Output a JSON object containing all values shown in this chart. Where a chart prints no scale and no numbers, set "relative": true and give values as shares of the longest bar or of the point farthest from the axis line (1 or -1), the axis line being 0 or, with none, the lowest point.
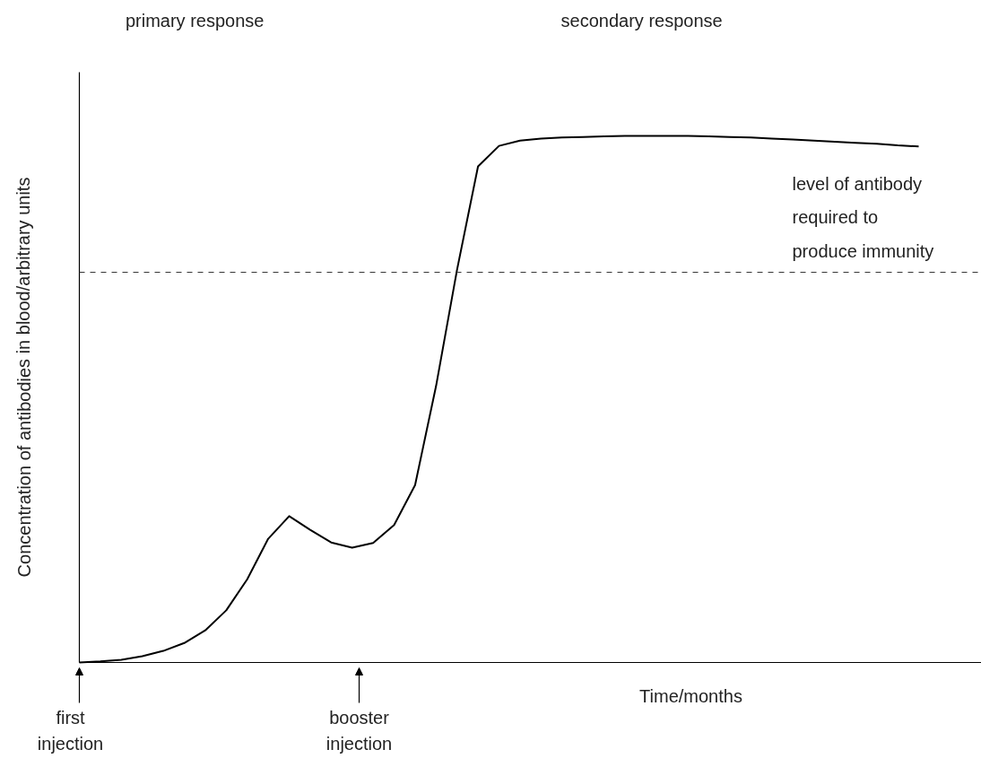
{
  "chart_data": {
    "type": "line",
    "relative": true,
    "categories": [
      null,
      null,
      null,
      null,
      null,
      null,
      null,
      null,
      null,
      null,
      null,
      null,
      null,
      null,
      null,
      null,
      null,
      null,
      null,
      null,
      null,
      null,
      null,
      null,
      null,
      null,
      null,
      null,
      null,
      null,
      null,
      null,
      null,
      null,
      null,
      null,
      null,
      null,
      null,
      null,
      null
    ],
    "values": [
      0,
      0.002,
      0.005,
      0.012,
      0.022,
      0.037,
      0.061,
      0.099,
      0.158,
      0.235,
      0.278,
      0.252,
      0.228,
      0.218,
      0.227,
      0.261,
      0.337,
      0.525,
      0.746,
      0.942,
      0.981,
      0.991,
      0.995,
      0.997,
      0.998,
      0.999,
      1,
      1,
      1,
      1,
      0.999,
      0.998,
      0.997,
      0.995,
      0.993,
      0.991,
      0.989,
      0.987,
      0.985,
      0.982,
      0.98
    ],
    "color": "#000000",
    "line_style": "solid",
    "xlabel": "Time/months",
    "ylabel": "Concentration of antibodies in blood/arbitrary units",
    "ref_lines": [
      {
        "axis": "y",
        "value": 0.741,
        "label": "level of antibody\nrequired to\nproduce immunity",
        "line_style": "dashed",
        "color": "#333333"
      }
    ],
    "annotations": [
      "primary response",
      "secondary response",
      "first\ninjection",
      "booster\ninjection"
    ]
  }
}
